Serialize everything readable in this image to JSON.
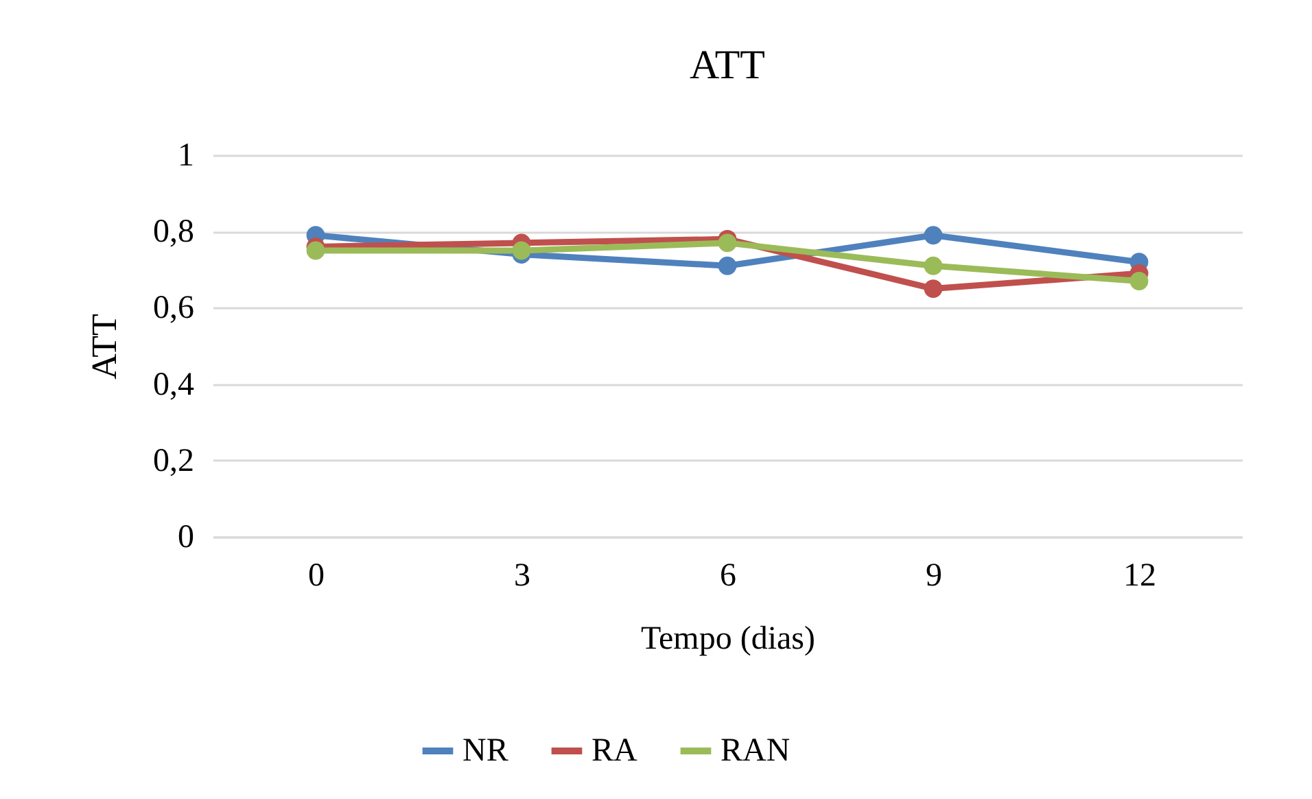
{
  "chart_data": {
    "type": "line",
    "title": "ATT",
    "xlabel": "Tempo (dias)",
    "ylabel": "ATT",
    "categories": [
      "0",
      "3",
      "6",
      "9",
      "12"
    ],
    "series": [
      {
        "name": "NR",
        "color": "#4f81bd",
        "values": [
          0.79,
          0.74,
          0.71,
          0.79,
          0.72
        ]
      },
      {
        "name": "RA",
        "color": "#c0504d",
        "values": [
          0.76,
          0.77,
          0.78,
          0.65,
          0.69
        ]
      },
      {
        "name": "RAN",
        "color": "#9bbb59",
        "values": [
          0.75,
          0.75,
          0.77,
          0.71,
          0.67
        ]
      }
    ],
    "ylim": [
      0,
      1
    ],
    "yticks": [
      0,
      {
        "value": 0.2,
        "label": "0,2"
      },
      {
        "value": 0.4,
        "label": "0,4"
      },
      {
        "value": 0.6,
        "label": "0,6"
      },
      {
        "value": 0.8,
        "label": "0,8"
      },
      1
    ],
    "grid": "y",
    "legend": "bottom",
    "marker": "circle",
    "line_style": "solid"
  }
}
